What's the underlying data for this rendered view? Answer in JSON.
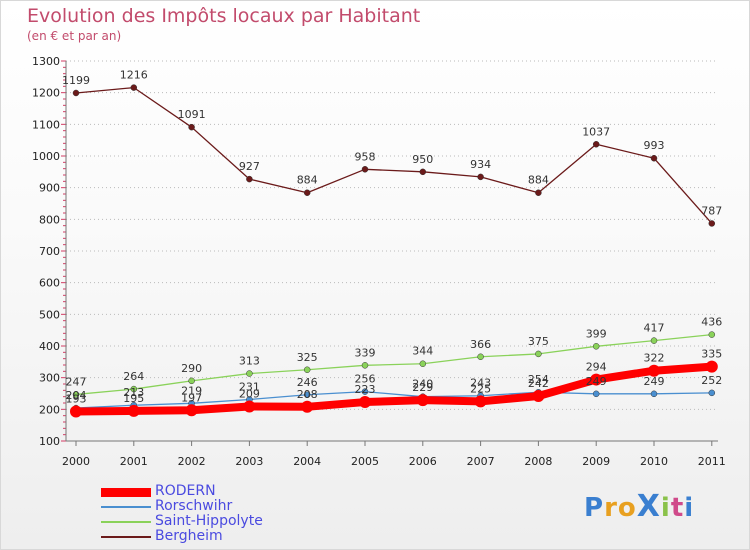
{
  "chart_data": {
    "type": "line",
    "title": "Evolution des Impôts locaux par Habitant",
    "subtitle": "(en € et par an)",
    "categories": [
      "2000",
      "2001",
      "2002",
      "2003",
      "2004",
      "2005",
      "2006",
      "2007",
      "2008",
      "2009",
      "2010",
      "2011"
    ],
    "ylim": [
      100,
      1300
    ],
    "yticks": [
      100,
      200,
      300,
      400,
      500,
      600,
      700,
      800,
      900,
      1000,
      1100,
      1200,
      1300
    ],
    "grid": "horizontal-dotted",
    "legend_position": "bottom-left",
    "series": [
      {
        "name": "Bergheim",
        "color": "#6b1a1a",
        "values": [
          1199,
          1216,
          1091,
          927,
          884,
          958,
          950,
          934,
          884,
          1037,
          993,
          787
        ]
      },
      {
        "name": "Saint-Hippolyte",
        "color": "#8ad25a",
        "values": [
          247,
          264,
          290,
          313,
          325,
          339,
          344,
          366,
          375,
          399,
          417,
          436
        ]
      },
      {
        "name": "Rorschwihr",
        "color": "#4a8fd0",
        "values": [
          204,
          213,
          219,
          231,
          246,
          256,
          240,
          243,
          254,
          249,
          249,
          252
        ]
      },
      {
        "name": "RODERN",
        "color": "#ff0000",
        "values": [
          193,
          195,
          197,
          209,
          208,
          223,
          229,
          225,
          242,
          294,
          322,
          335
        ]
      }
    ],
    "legend": [
      "RODERN",
      "Rorschwihr",
      "Saint-Hippolyte",
      "Bergheim"
    ],
    "brand": "ProXiti"
  }
}
